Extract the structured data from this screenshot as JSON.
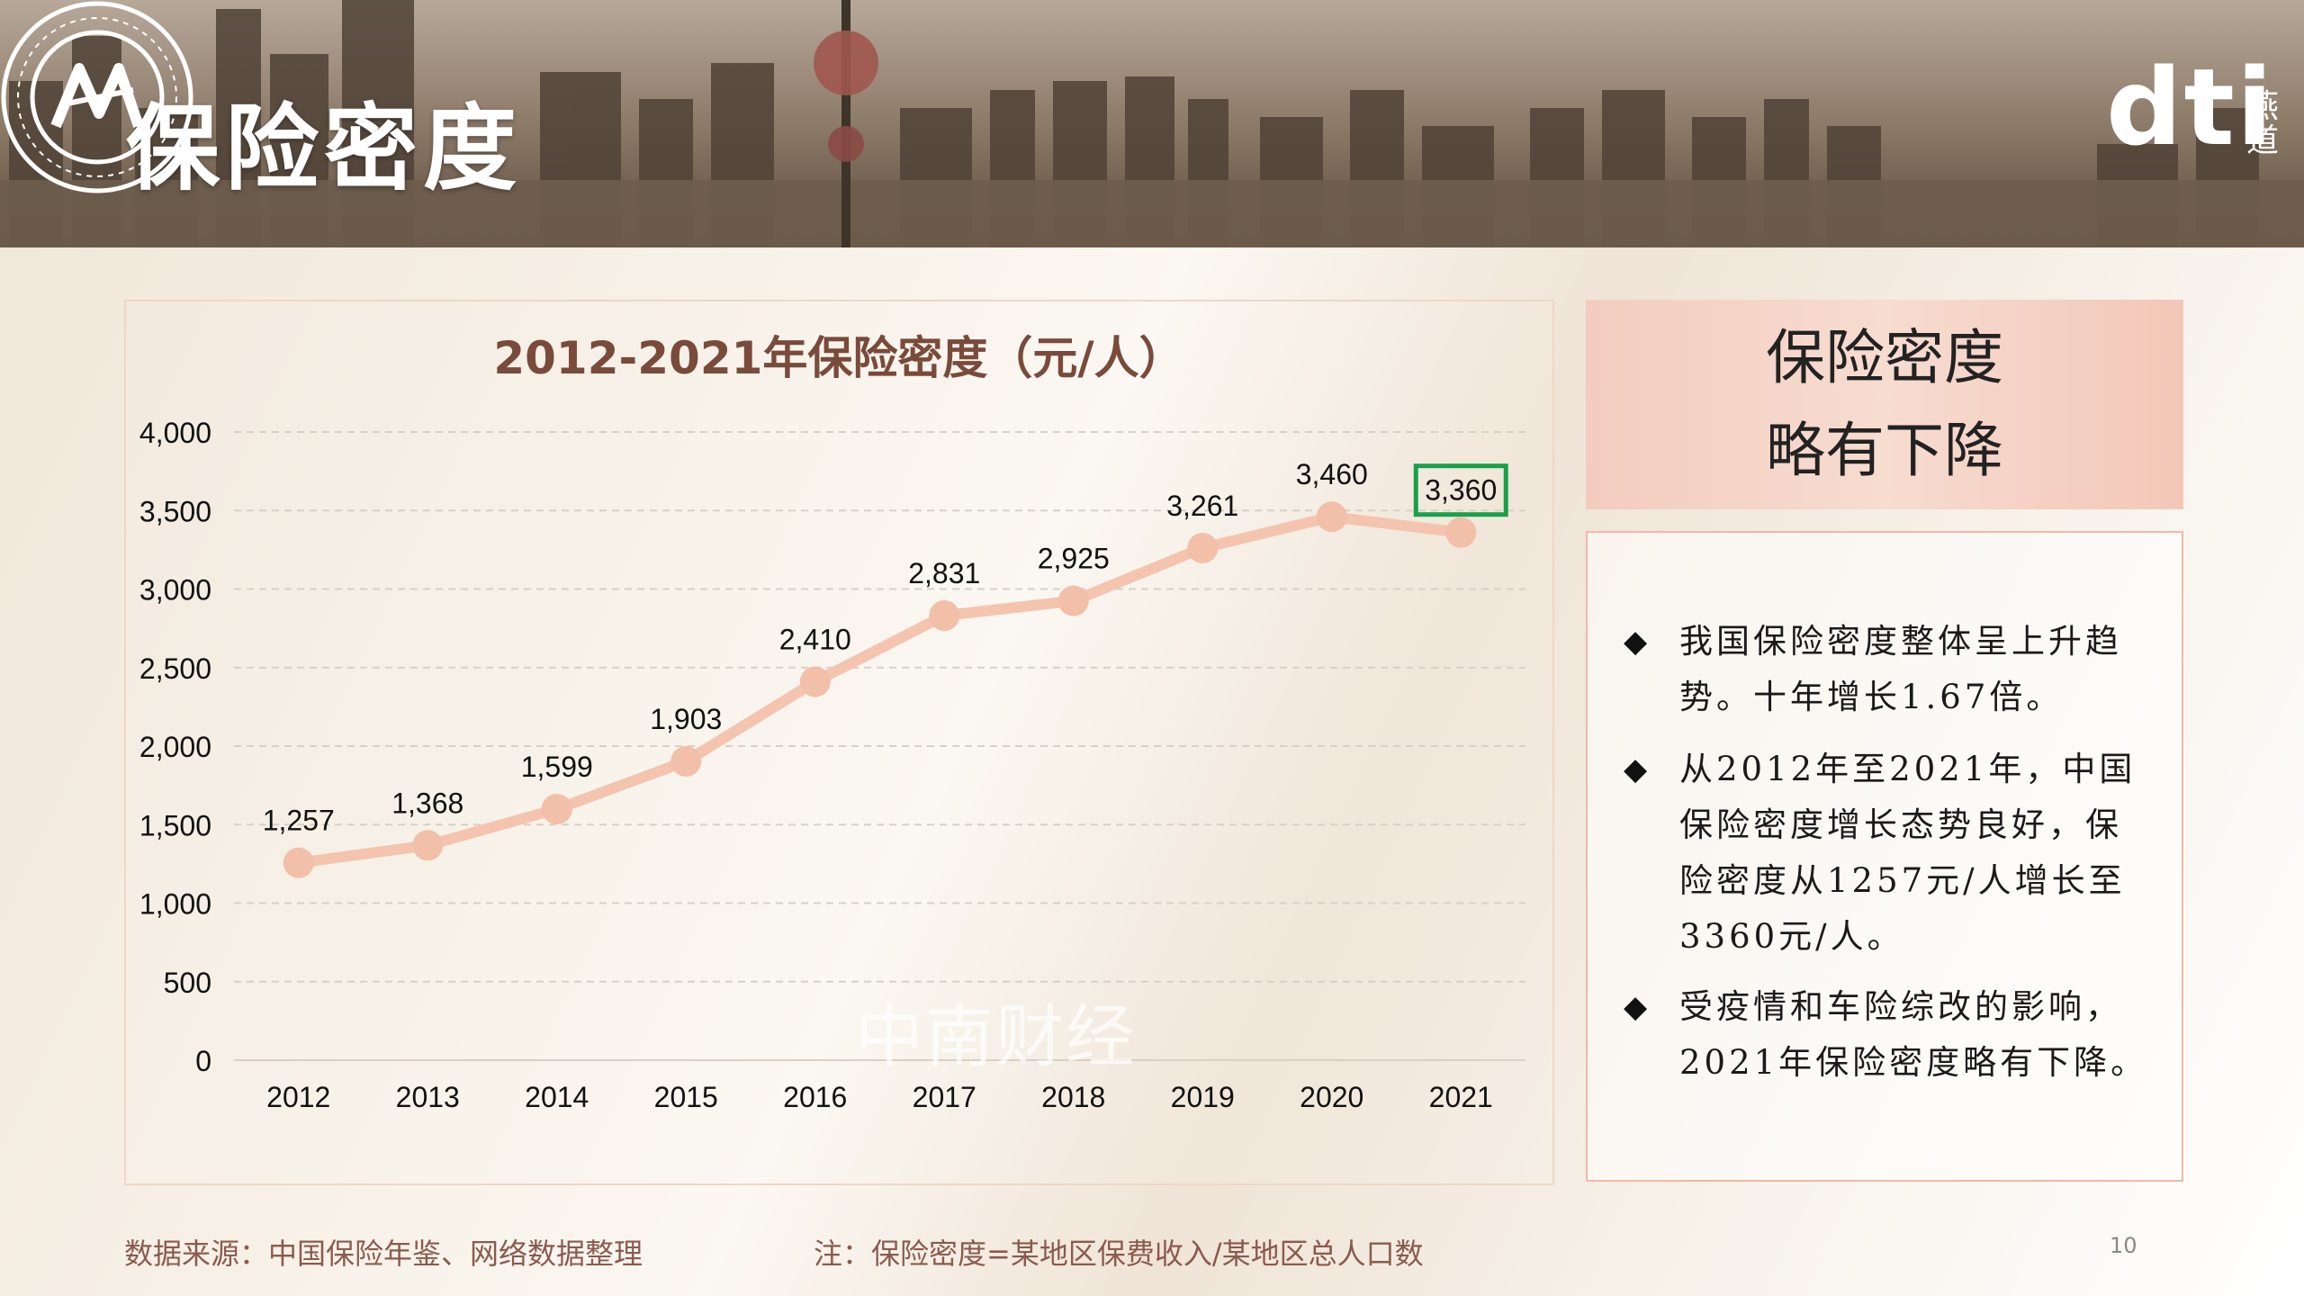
{
  "header": {
    "title": "保险密度",
    "brand": "dti",
    "brand_cn": "燕道"
  },
  "chart_data": {
    "type": "line",
    "title": "2012-2021年保险密度（元/人）",
    "x": [
      "2012",
      "2013",
      "2014",
      "2015",
      "2016",
      "2017",
      "2018",
      "2019",
      "2020",
      "2021"
    ],
    "series": [
      {
        "values": [
          1257,
          1368,
          1599,
          1903,
          2410,
          2831,
          2925,
          3261,
          3460,
          3360
        ]
      }
    ],
    "data_labels": [
      "1,257",
      "1,368",
      "1,599",
      "1,903",
      "2,410",
      "2,831",
      "2,925",
      "3,261",
      "3,460",
      "3,360"
    ],
    "ylim": [
      0,
      4000
    ],
    "yticks": [
      "0",
      "500",
      "1,000",
      "1,500",
      "2,000",
      "2,500",
      "3,000",
      "3,500",
      "4,000"
    ],
    "grid": true,
    "highlight_index": 9,
    "colors": {
      "line": "#f4c4ae",
      "marker": "#f2bfa8",
      "highlight_box": "#1aa04a",
      "title": "#7a4a3a"
    }
  },
  "watermark": "中南财经",
  "headline": {
    "line1": "保险密度",
    "line2": "略有下降"
  },
  "notes": [
    "我国保险密度整体呈上升趋势。十年增长1.67倍。",
    "从2012年至2021年，中国保险密度增长态势良好，保险密度从1257元/人增长至3360元/人。",
    "受疫情和车险综改的影响，2021年保险密度略有下降。"
  ],
  "footer": {
    "source": "数据来源：中国保险年鉴、网络数据整理",
    "note": "注：保险密度=某地区保费收入/某地区总人口数",
    "page": "10"
  }
}
